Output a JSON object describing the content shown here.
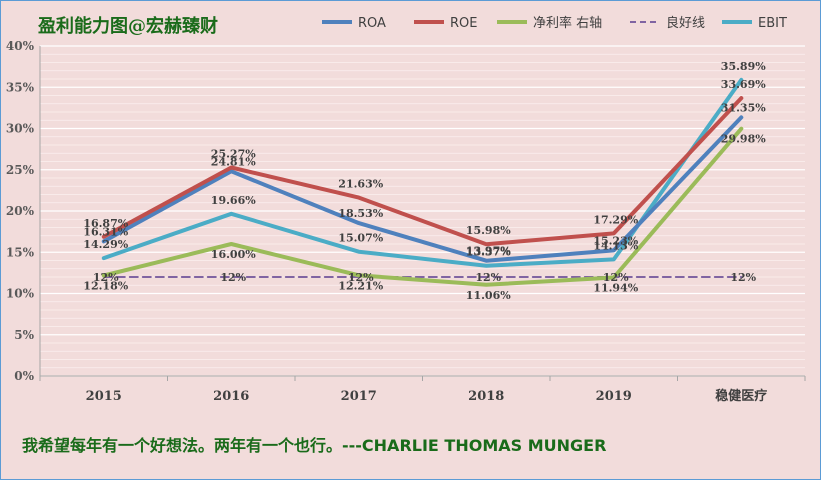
{
  "chart_data": {
    "type": "line",
    "title": "盈利能力图@宏赫臻财",
    "categories": [
      "2015",
      "2016",
      "2017",
      "2018",
      "2019",
      "稳健医疗"
    ],
    "ylim": [
      0,
      40
    ],
    "y_ticks": [
      "0%",
      "5%",
      "10%",
      "15%",
      "20%",
      "25%",
      "30%",
      "35%",
      "40%"
    ],
    "legend_position": "top-right",
    "grid": true,
    "series": [
      {
        "name": "ROA",
        "color": "#4f81bd",
        "style": "solid",
        "values": [
          16.31,
          24.81,
          18.53,
          13.97,
          15.23,
          31.35
        ],
        "labels": [
          "16.31%",
          "24.81%",
          "18.53%",
          "13.97%",
          "15.23%",
          "31.35%"
        ]
      },
      {
        "name": "ROE",
        "color": "#c0504d",
        "style": "solid",
        "values": [
          16.87,
          25.27,
          21.63,
          15.98,
          17.29,
          33.69
        ],
        "labels": [
          "16.87%",
          "25.27%",
          "21.63%",
          "15.98%",
          "17.29%",
          "33.69%"
        ]
      },
      {
        "name": "净利率 右轴",
        "color": "#9bbb59",
        "style": "solid",
        "values": [
          12.18,
          16.0,
          12.21,
          11.06,
          11.94,
          29.98
        ],
        "labels": [
          "12.18%",
          "16.00%",
          "12.21%",
          "11.06%",
          "11.94%",
          "29.98%"
        ]
      },
      {
        "name": "良好线",
        "color": "#8064a2",
        "style": "dashed",
        "values": [
          12,
          12,
          12,
          12,
          12,
          12
        ],
        "labels": [
          "12%",
          "12%",
          "12%",
          "12%",
          "12%",
          "12%"
        ]
      },
      {
        "name": "EBIT",
        "color": "#4bacc6",
        "style": "solid",
        "values": [
          14.29,
          19.66,
          15.07,
          13.37,
          14.13,
          35.89
        ],
        "labels": [
          "14.29%",
          "19.66%",
          "15.07%",
          "13.37%",
          "14.13%",
          "35.89%"
        ]
      }
    ]
  },
  "footer": {
    "quote": "我希望每年有一个好想法。两年有一个也行。---CHARLIE THOMAS MUNGER"
  }
}
